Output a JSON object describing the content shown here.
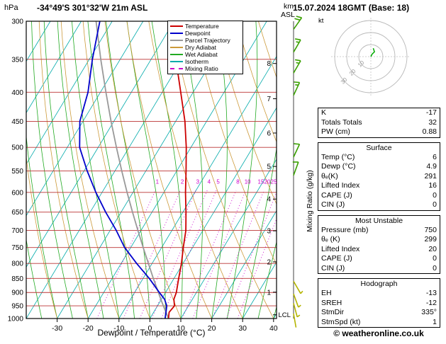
{
  "header": {
    "pressure_unit": "hPa",
    "title": "-34°49'S 301°32'W 21m ASL",
    "datetime": "15.07.2024 18GMT (Base: 18)",
    "km_label": "km",
    "asl_label": "ASL"
  },
  "legend": {
    "items": [
      {
        "label": "Temperature",
        "color": "#cc0000",
        "dashed": false
      },
      {
        "label": "Dewpoint",
        "color": "#0000cc",
        "dashed": false
      },
      {
        "label": "Parcel Trajectory",
        "color": "#999999",
        "dashed": false
      },
      {
        "label": "Dry Adiabat",
        "color": "#cc9a3a",
        "dashed": false
      },
      {
        "label": "Wet Adiabat",
        "color": "#22aa22",
        "dashed": false
      },
      {
        "label": "Isotherm",
        "color": "#00aaaa",
        "dashed": false
      },
      {
        "label": "Mixing Ratio",
        "color": "#cc00cc",
        "dashed": true
      }
    ]
  },
  "axes": {
    "xlabel": "Dewpoint / Temperature (°C)",
    "mixing_ratio_label": "Mixing Ratio (g/kg)",
    "lcl_label": "LCL",
    "pressure_ticks": [
      300,
      350,
      400,
      450,
      500,
      550,
      600,
      650,
      700,
      750,
      800,
      850,
      900,
      950,
      1000
    ],
    "temp_ticks": [
      -30,
      -20,
      -10,
      0,
      10,
      20,
      30,
      40
    ],
    "km_ticks": [
      1,
      2,
      3,
      4,
      5,
      6,
      7,
      8
    ],
    "mixing_ratio_values": [
      1,
      2,
      3,
      4,
      5,
      8,
      10,
      15,
      20,
      25
    ]
  },
  "chart_data": {
    "type": "skewt_log_p_sounding",
    "pressure_range_hpa": [
      300,
      1000
    ],
    "isotherm_step_c": 10,
    "dry_adiabat_step_c": 10,
    "wet_adiabat_step_c": 5,
    "mixing_ratio_lines_gkg": [
      1,
      2,
      3,
      4,
      5,
      8,
      10,
      15,
      20,
      25
    ],
    "lcl_pressure_hpa": 985,
    "sounding": {
      "pressure": [
        1000,
        975,
        950,
        925,
        900,
        850,
        800,
        750,
        700,
        650,
        600,
        550,
        500,
        450,
        400,
        350,
        300
      ],
      "temperature": [
        6,
        5,
        5.5,
        4,
        3.5,
        1.5,
        -0.5,
        -3,
        -5.5,
        -9,
        -13,
        -17,
        -21.5,
        -27,
        -34,
        -42,
        -51
      ],
      "dewpoint": [
        4.9,
        4,
        3,
        1,
        -2,
        -8,
        -15,
        -22,
        -28,
        -35,
        -42,
        -49,
        -56,
        -61,
        -64,
        -69,
        -74
      ],
      "parcel": [
        6,
        4,
        1.9,
        -0.2,
        -2.3,
        -6.7,
        -11.2,
        -16,
        -21,
        -26.3,
        -31.9,
        -37.8,
        -44.1,
        -50.9,
        -58.2,
        -66.3,
        -75.2
      ]
    },
    "wind_barbs": [
      {
        "pressure": 310,
        "speed": 20,
        "direction": 35,
        "color": "#3aa000"
      },
      {
        "pressure": 340,
        "speed": 15,
        "direction": 30,
        "color": "#3aa000"
      },
      {
        "pressure": 370,
        "speed": 15,
        "direction": 30,
        "color": "#3aa000"
      },
      {
        "pressure": 405,
        "speed": 15,
        "direction": 25,
        "color": "#3aa000"
      },
      {
        "pressure": 520,
        "speed": 10,
        "direction": 25,
        "color": "#3aa000"
      },
      {
        "pressure": 560,
        "speed": 10,
        "direction": 20,
        "color": "#3aa000"
      },
      {
        "pressure": 860,
        "speed": 5,
        "direction": 150,
        "color": "#b4b400"
      },
      {
        "pressure": 905,
        "speed": 5,
        "direction": 160,
        "color": "#b4b400"
      },
      {
        "pressure": 940,
        "speed": 5,
        "direction": 165,
        "color": "#b4b400"
      },
      {
        "pressure": 980,
        "speed": 3,
        "direction": 170,
        "color": "#b4b400"
      }
    ],
    "colors": {
      "temperature": "#cc0000",
      "dewpoint": "#0000cc",
      "parcel": "#999999",
      "dry_adiabat": "#cc9a3a",
      "wet_adiabat": "#22aa22",
      "isotherm": "#00aaaa",
      "mixing_ratio": "#cc00cc",
      "isobar": "#bb3333"
    }
  },
  "hodograph": {
    "unit": "kt",
    "rings_kt": [
      10,
      20,
      30
    ],
    "trace_kt": [
      [
        0,
        0
      ],
      [
        1,
        2
      ],
      [
        3,
        4
      ],
      [
        2,
        7
      ]
    ]
  },
  "stats": {
    "sections": [
      {
        "rows": [
          [
            "K",
            "-17"
          ],
          [
            "Totals Totals",
            "32"
          ],
          [
            "PW (cm)",
            "0.88"
          ]
        ]
      },
      {
        "title": "Surface",
        "rows": [
          [
            "Temp (°C)",
            "6"
          ],
          [
            "Dewp (°C)",
            "4.9"
          ],
          [
            "θₑ(K)",
            "291"
          ],
          [
            "Lifted Index",
            "16"
          ],
          [
            "CAPE (J)",
            "0"
          ],
          [
            "CIN (J)",
            "0"
          ]
        ]
      },
      {
        "title": "Most Unstable",
        "rows": [
          [
            "Pressure (mb)",
            "750"
          ],
          [
            "θₑ (K)",
            "299"
          ],
          [
            "Lifted Index",
            "20"
          ],
          [
            "CAPE (J)",
            "0"
          ],
          [
            "CIN (J)",
            "0"
          ]
        ]
      },
      {
        "title": "Hodograph",
        "rows": [
          [
            "EH",
            "-13"
          ],
          [
            "SREH",
            "-12"
          ],
          [
            "StmDir",
            "335°"
          ],
          [
            "StmSpd (kt)",
            "1"
          ]
        ]
      }
    ]
  },
  "footer": {
    "copyright": "© weatheronline.co.uk"
  }
}
